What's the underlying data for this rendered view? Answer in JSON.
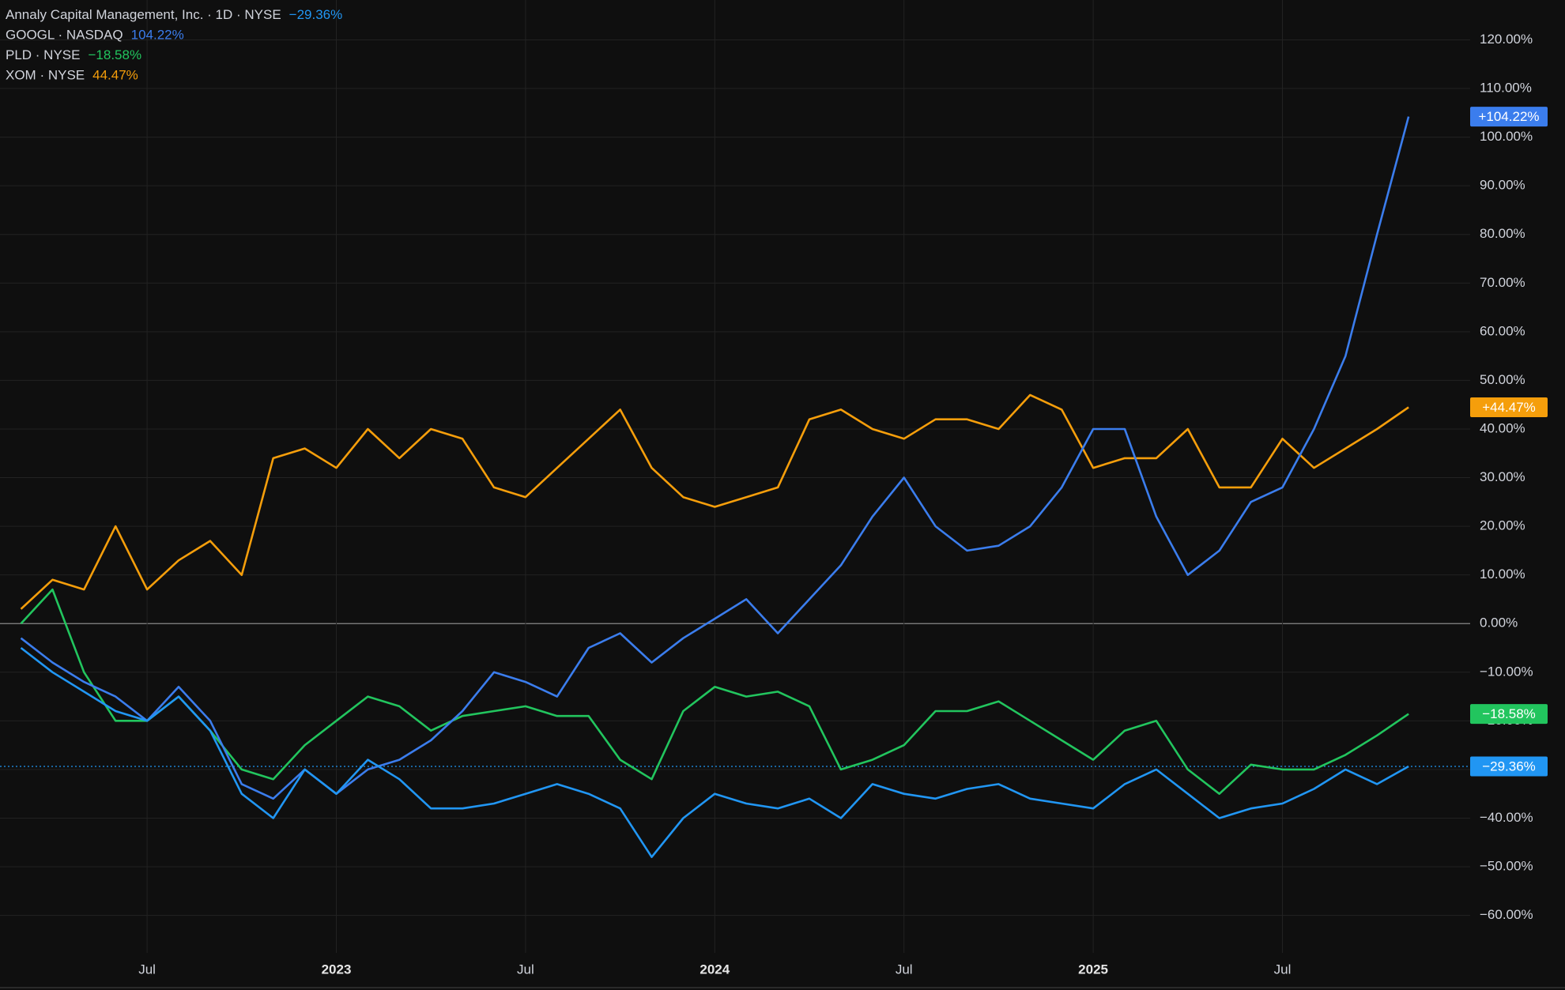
{
  "chart_data": {
    "type": "line",
    "x": [
      "2022-03",
      "2022-04",
      "2022-05",
      "2022-06",
      "2022-07",
      "2022-08",
      "2022-09",
      "2022-10",
      "2022-11",
      "2022-12",
      "2023-01",
      "2023-02",
      "2023-03",
      "2023-04",
      "2023-05",
      "2023-06",
      "2023-07",
      "2023-08",
      "2023-09",
      "2023-10",
      "2023-11",
      "2023-12",
      "2024-01",
      "2024-02",
      "2024-03",
      "2024-04",
      "2024-05",
      "2024-06",
      "2024-07",
      "2024-08",
      "2024-09",
      "2024-10",
      "2024-11",
      "2024-12",
      "2025-01",
      "2025-02",
      "2025-03",
      "2025-04",
      "2025-05",
      "2025-06",
      "2025-07",
      "2025-08",
      "2025-09",
      "2025-10",
      "2025-11"
    ],
    "xticks": [
      {
        "value": "2022-07",
        "label": "Jul"
      },
      {
        "value": "2023-01",
        "label": "2023"
      },
      {
        "value": "2023-07",
        "label": "Jul"
      },
      {
        "value": "2024-01",
        "label": "2024"
      },
      {
        "value": "2024-07",
        "label": "Jul"
      },
      {
        "value": "2025-01",
        "label": "2025"
      },
      {
        "value": "2025-07",
        "label": "Jul"
      }
    ],
    "ylim": [
      -67.7,
      128.2
    ],
    "yticks": [
      {
        "value": 120,
        "label": "120.00%"
      },
      {
        "value": 110,
        "label": "110.00%"
      },
      {
        "value": 100,
        "label": "100.00%"
      },
      {
        "value": 90,
        "label": "90.00%"
      },
      {
        "value": 80,
        "label": "80.00%"
      },
      {
        "value": 70,
        "label": "70.00%"
      },
      {
        "value": 60,
        "label": "60.00%"
      },
      {
        "value": 50,
        "label": "50.00%"
      },
      {
        "value": 40,
        "label": "40.00%"
      },
      {
        "value": 30,
        "label": "30.00%"
      },
      {
        "value": 20,
        "label": "20.00%"
      },
      {
        "value": 10,
        "label": "10.00%"
      },
      {
        "value": 0,
        "label": "0.00%"
      },
      {
        "value": -10,
        "label": "−10.00%"
      },
      {
        "value": -20,
        "label": "−20.00%"
      },
      {
        "value": -30,
        "label": "−30.00%"
      },
      {
        "value": -40,
        "label": "−40.00%"
      },
      {
        "value": -50,
        "label": "−50.00%"
      },
      {
        "value": -60,
        "label": "−60.00%"
      }
    ],
    "grid": true,
    "series": [
      {
        "name": "Annaly Capital Management, Inc. · 1D · NYSE",
        "color": "#2196f3",
        "legend_value": "−29.36%",
        "badge": "−29.36%",
        "values": [
          -5,
          -10,
          -14,
          -18,
          -20,
          -15,
          -22,
          -35,
          -40,
          -30,
          -35,
          -28,
          -32,
          -38,
          -38,
          -37,
          -35,
          -33,
          -35,
          -38,
          -48,
          -40,
          -35,
          -37,
          -38,
          -36,
          -40,
          -33,
          -35,
          -36,
          -34,
          -33,
          -36,
          -37,
          -38,
          -33,
          -30,
          -35,
          -40,
          -38,
          -37,
          -34,
          -30,
          -33,
          -29.36
        ]
      },
      {
        "name": "GOOGL · NASDAQ",
        "color": "#3b7ded",
        "legend_value": "104.22%",
        "badge": "+104.22%",
        "values": [
          -3,
          -8,
          -12,
          -15,
          -20,
          -13,
          -20,
          -33,
          -36,
          -30,
          -35,
          -30,
          -28,
          -24,
          -18,
          -10,
          -12,
          -15,
          -5,
          -2,
          -8,
          -3,
          1,
          5,
          -2,
          5,
          12,
          22,
          30,
          20,
          15,
          16,
          20,
          28,
          40,
          40,
          22,
          10,
          15,
          25,
          28,
          40,
          55,
          80,
          104.22
        ]
      },
      {
        "name": "PLD · NYSE",
        "color": "#22c55e",
        "legend_value": "−18.58%",
        "badge": "−18.58%",
        "values": [
          0,
          7,
          -10,
          -20,
          -20,
          -15,
          -22,
          -30,
          -32,
          -25,
          -20,
          -15,
          -17,
          -22,
          -19,
          -18,
          -17,
          -19,
          -19,
          -28,
          -32,
          -18,
          -13,
          -15,
          -14,
          -17,
          -30,
          -28,
          -25,
          -18,
          -18,
          -16,
          -20,
          -24,
          -28,
          -22,
          -20,
          -30,
          -35,
          -29,
          -30,
          -30,
          -27,
          -23,
          -18.58
        ]
      },
      {
        "name": "XOM · NYSE",
        "color": "#f59e0b",
        "legend_value": "44.47%",
        "badge": "+44.47%",
        "values": [
          3,
          9,
          7,
          20,
          7,
          13,
          17,
          10,
          34,
          36,
          32,
          40,
          34,
          40,
          38,
          28,
          26,
          32,
          38,
          44,
          32,
          26,
          24,
          26,
          28,
          42,
          44,
          40,
          38,
          42,
          42,
          40,
          47,
          44,
          32,
          34,
          34,
          40,
          28,
          28,
          38,
          32,
          36,
          40,
          44.47
        ]
      }
    ]
  }
}
